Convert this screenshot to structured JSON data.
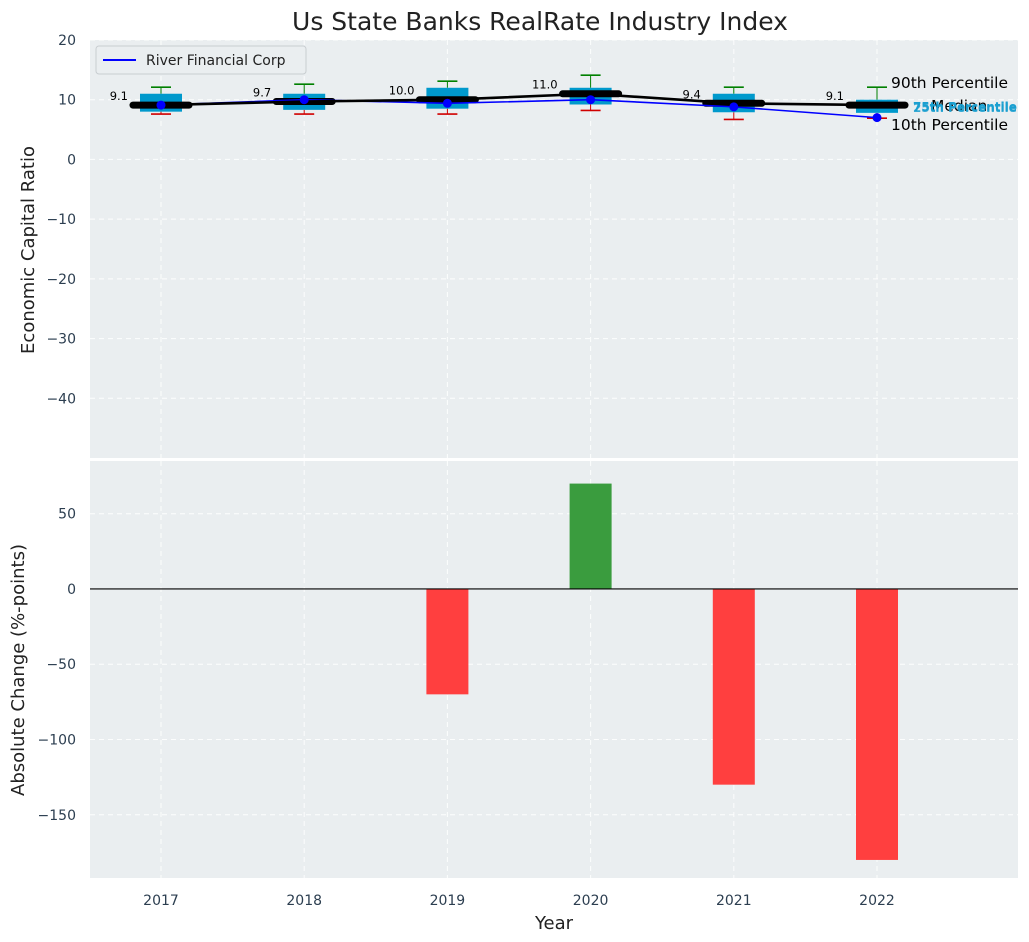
{
  "chart_data": [
    {
      "type": "box",
      "title": "Us State Banks RealRate Industry Index",
      "xlabel": "",
      "ylabel": "Economic Capital Ratio",
      "ylim": [
        -50,
        20
      ],
      "yticks": [
        20,
        10,
        0,
        -10,
        -20,
        -30,
        -40
      ],
      "ytick_labels": [
        "20",
        "10",
        "0",
        "−10",
        "−20",
        "−30",
        "−40"
      ],
      "categories": [
        "2017",
        "2018",
        "2019",
        "2020",
        "2021",
        "2022"
      ],
      "boxes": [
        {
          "year": "2017",
          "p10": 7.6,
          "q1": 8.0,
          "median": 9.1,
          "q3": 11.0,
          "p90": 12.1
        },
        {
          "year": "2018",
          "p10": 7.6,
          "q1": 8.3,
          "median": 9.7,
          "q3": 11.0,
          "p90": 12.6
        },
        {
          "year": "2019",
          "p10": 7.6,
          "q1": 8.5,
          "median": 10.0,
          "q3": 12.0,
          "p90": 13.1
        },
        {
          "year": "2020",
          "p10": 8.2,
          "q1": 9.2,
          "median": 11.0,
          "q3": 12.0,
          "p90": 14.1
        },
        {
          "year": "2021",
          "p10": 6.7,
          "q1": 7.9,
          "median": 9.4,
          "q3": 11.0,
          "p90": 12.1
        },
        {
          "year": "2022",
          "p10": 6.9,
          "q1": 7.8,
          "median": 9.1,
          "q3": 10.0,
          "p90": 12.1
        }
      ],
      "median_labels": [
        "9.1",
        "9.7",
        "10.0",
        "11.0",
        "9.4",
        "9.1"
      ],
      "series": [
        {
          "name": "River Financial Corp",
          "color": "#0000ff",
          "values": [
            9.1,
            10.0,
            9.4,
            10.0,
            8.8,
            7.0
          ]
        },
        {
          "name": "Median",
          "color": "#000000",
          "values": [
            9.1,
            9.7,
            10.0,
            11.0,
            9.4,
            9.1
          ]
        }
      ],
      "legend": {
        "entries": [
          "River Financial Corp"
        ],
        "placement": "upper-left"
      },
      "annotations": {
        "p90": "90th Percentile",
        "median": "Median",
        "p10": "10th Percentile",
        "p75": "75th Percentile",
        "p25": "25th Percentile"
      },
      "colors": {
        "box": "#0099cc",
        "whisker_high": "#008000",
        "whisker_low": "#d00000",
        "median": "#000000",
        "company": "#0000ff",
        "background": "#eaeef0"
      }
    },
    {
      "type": "bar",
      "title": "",
      "xlabel": "Year",
      "ylabel": "Absolute Change (%-points)",
      "ylim": [
        -192,
        85
      ],
      "yticks": [
        50,
        0,
        -50,
        -100,
        -150
      ],
      "ytick_labels": [
        "50",
        "0",
        "−50",
        "−100",
        "−150"
      ],
      "categories": [
        "2017",
        "2018",
        "2019",
        "2020",
        "2021",
        "2022"
      ],
      "values": [
        0,
        0,
        -70,
        70,
        -130,
        -180
      ],
      "colors": {
        "positive": "#3a9c3e",
        "negative": "#ff3f3f"
      }
    }
  ]
}
